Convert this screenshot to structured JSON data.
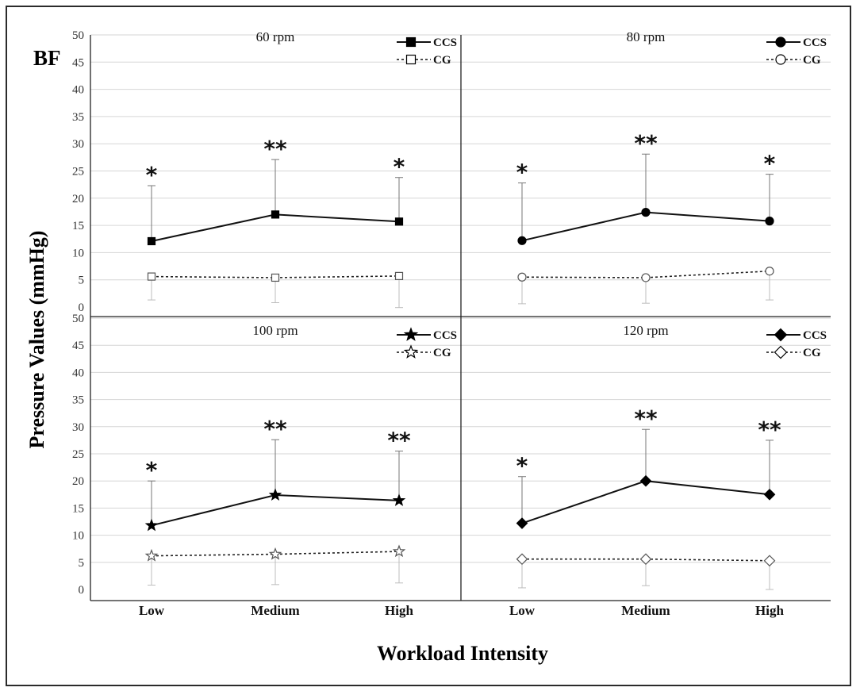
{
  "figure": {
    "panel_tag": "BF",
    "ylabel": "Pressure Values (mmHg)",
    "xlabel": "Workload Intensity"
  },
  "chart_data": [
    {
      "type": "line",
      "title": "60 rpm",
      "categories": [
        "Low",
        "Medium",
        "High"
      ],
      "ylim": [
        0,
        50
      ],
      "yticks": [
        0,
        5,
        10,
        15,
        20,
        25,
        30,
        35,
        40,
        45,
        50
      ],
      "grid": true,
      "legend_position": "top-right",
      "series": [
        {
          "name": "CCS",
          "marker": "square-filled",
          "line": "solid",
          "values": [
            12.1,
            17.0,
            15.7
          ],
          "err_upper": [
            22.3,
            27.1,
            23.8
          ]
        },
        {
          "name": "CG",
          "marker": "square-open",
          "line": "dotted",
          "values": [
            5.6,
            5.4,
            5.7
          ],
          "err_lower": [
            1.3,
            0.8,
            -0.1
          ]
        }
      ],
      "annotations": [
        "*",
        "**",
        "*"
      ]
    },
    {
      "type": "line",
      "title": "80 rpm",
      "categories": [
        "Low",
        "Medium",
        "High"
      ],
      "ylim": [
        0,
        50
      ],
      "yticks": [
        0,
        5,
        10,
        15,
        20,
        25,
        30,
        35,
        40,
        45,
        50
      ],
      "grid": true,
      "legend_position": "top-right",
      "series": [
        {
          "name": "CCS",
          "marker": "circle-filled",
          "line": "solid",
          "values": [
            12.2,
            17.4,
            15.8
          ],
          "err_upper": [
            22.8,
            28.1,
            24.4
          ]
        },
        {
          "name": "CG",
          "marker": "circle-open",
          "line": "dotted",
          "values": [
            5.5,
            5.4,
            6.6
          ],
          "err_lower": [
            0.6,
            0.7,
            1.3
          ]
        }
      ],
      "annotations": [
        "*",
        "**",
        "*"
      ]
    },
    {
      "type": "line",
      "title": "100 rpm",
      "categories": [
        "Low",
        "Medium",
        "High"
      ],
      "ylim": [
        0,
        50
      ],
      "yticks": [
        0,
        5,
        10,
        15,
        20,
        25,
        30,
        35,
        40,
        45,
        50
      ],
      "grid": true,
      "legend_position": "top-right",
      "series": [
        {
          "name": "CCS",
          "marker": "star-filled",
          "line": "solid",
          "values": [
            11.8,
            17.4,
            16.4
          ],
          "err_upper": [
            20.0,
            27.6,
            25.5
          ]
        },
        {
          "name": "CG",
          "marker": "star-open",
          "line": "dotted",
          "values": [
            6.2,
            6.5,
            7.0
          ],
          "err_lower": [
            0.8,
            0.9,
            1.2
          ]
        }
      ],
      "annotations": [
        "*",
        "**",
        "**"
      ]
    },
    {
      "type": "line",
      "title": "120 rpm",
      "categories": [
        "Low",
        "Medium",
        "High"
      ],
      "ylim": [
        0,
        50
      ],
      "yticks": [
        0,
        5,
        10,
        15,
        20,
        25,
        30,
        35,
        40,
        45,
        50
      ],
      "grid": true,
      "legend_position": "top-right",
      "series": [
        {
          "name": "CCS",
          "marker": "diamond-filled",
          "line": "solid",
          "values": [
            12.2,
            20.0,
            17.5
          ],
          "err_upper": [
            20.8,
            29.5,
            27.5
          ]
        },
        {
          "name": "CG",
          "marker": "diamond-open",
          "line": "dotted",
          "values": [
            5.6,
            5.6,
            5.3
          ],
          "err_lower": [
            0.3,
            0.7,
            0.0
          ]
        }
      ],
      "annotations": [
        "*",
        "**",
        "**"
      ]
    }
  ]
}
